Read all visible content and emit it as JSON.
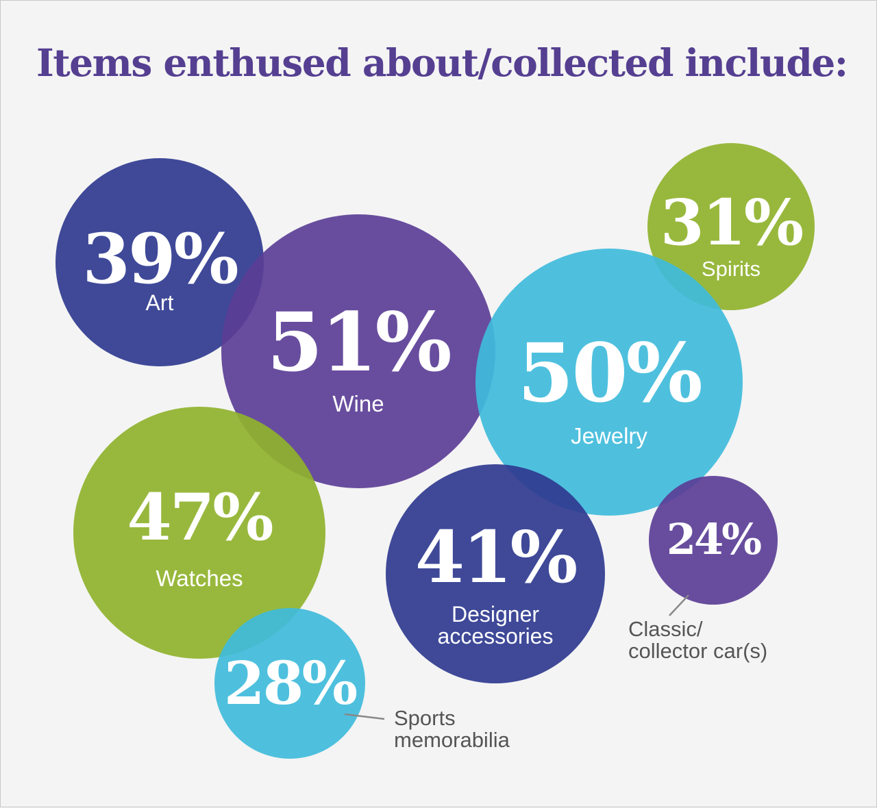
{
  "title": "Items enthused about/collected include:",
  "colors": {
    "background": "#f4f4f4",
    "title": "#553f91",
    "navy": "#2f3a8f",
    "purple": "#5b3e96",
    "cyan": "#3fbbdb",
    "green": "#8fb22d",
    "leader": "#888888",
    "outside_label": "#555555"
  },
  "chart_data": {
    "type": "bubble",
    "title": "Items enthused about/collected include:",
    "unit": "%",
    "items": [
      {
        "label": "Art",
        "value": 39,
        "value_text": "39%",
        "color": "navy"
      },
      {
        "label": "Wine",
        "value": 51,
        "value_text": "51%",
        "color": "purple"
      },
      {
        "label": "Spirits",
        "value": 31,
        "value_text": "31%",
        "color": "green"
      },
      {
        "label": "Jewelry",
        "value": 50,
        "value_text": "50%",
        "color": "cyan"
      },
      {
        "label": "Watches",
        "value": 47,
        "value_text": "47%",
        "color": "green"
      },
      {
        "label": "Designer accessories",
        "value": 41,
        "value_text": "41%",
        "color": "navy"
      },
      {
        "label": "Classic/ collector car(s)",
        "value": 24,
        "value_text": "24%",
        "color": "purple"
      },
      {
        "label": "Sports memorabilia",
        "value": 28,
        "value_text": "28%",
        "color": "cyan"
      }
    ]
  }
}
